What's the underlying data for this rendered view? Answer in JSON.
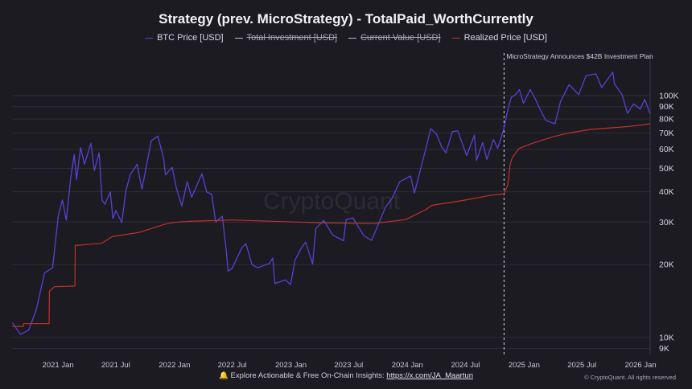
{
  "title": "Strategy (prev. MicroStrategy) - TotalPaid_WorthCurrently",
  "legend": [
    {
      "label": "BTC Price [USD]",
      "color": "#5b3fd6",
      "disabled": false
    },
    {
      "label": "Total Investment [USD]",
      "color": "#bdbdbd",
      "disabled": true
    },
    {
      "label": "Current Value [USD]",
      "color": "#bdbdbd",
      "disabled": true
    },
    {
      "label": "Realized Price [USD]",
      "color": "#c2312b",
      "disabled": false
    }
  ],
  "watermark": "CryptoQuant",
  "footer": {
    "icon": "bell-icon",
    "text": "Explore Actionable & Free On-Chain Insights: ",
    "link": "https://x.com/JA_Maartun"
  },
  "copyright": "© CryptoQuant. All rights reserved",
  "chart_data": {
    "type": "line",
    "title": "Strategy (prev. MicroStrategy) - TotalPaid_WorthCurrently",
    "x_range": [
      "2020-08-10",
      "2026-01-31"
    ],
    "y_scale": "log",
    "ylim": [
      8500,
      150000
    ],
    "x_ticks": [
      {
        "date": "2021-01-01",
        "label": "2021 Jan"
      },
      {
        "date": "2021-07-01",
        "label": "2021 Jul"
      },
      {
        "date": "2022-01-01",
        "label": "2022 Jan"
      },
      {
        "date": "2022-07-01",
        "label": "2022 Jul"
      },
      {
        "date": "2023-01-01",
        "label": "2023 Jan"
      },
      {
        "date": "2023-07-01",
        "label": "2023 Jul"
      },
      {
        "date": "2024-01-01",
        "label": "2024 Jan"
      },
      {
        "date": "2024-07-01",
        "label": "2024 Jul"
      },
      {
        "date": "2025-01-01",
        "label": "2025 Jan"
      },
      {
        "date": "2025-07-01",
        "label": "2025 Jul"
      },
      {
        "date": "2026-01-01",
        "label": "2026 Jan"
      }
    ],
    "y_ticks": [
      {
        "value": 9000,
        "label": "9K"
      },
      {
        "value": 10000,
        "label": "10K"
      },
      {
        "value": 20000,
        "label": "20K"
      },
      {
        "value": 30000,
        "label": "30K"
      },
      {
        "value": 40000,
        "label": "40K"
      },
      {
        "value": 50000,
        "label": "50K"
      },
      {
        "value": 60000,
        "label": "60K"
      },
      {
        "value": 70000,
        "label": "70K"
      },
      {
        "value": 80000,
        "label": "80K"
      },
      {
        "value": 90000,
        "label": "90K"
      },
      {
        "value": 100000,
        "label": "100K"
      }
    ],
    "grid": true,
    "legend_position": "top-center",
    "annotations": [
      {
        "type": "vertical-line",
        "date": "2024-10-30",
        "label": "MicroStrategy Announces $42B Investment Plan"
      }
    ],
    "series": [
      {
        "name": "BTC Price [USD]",
        "color": "#5b3fd6",
        "points": [
          [
            "2020-08-11",
            11500
          ],
          [
            "2020-09-05",
            10300
          ],
          [
            "2020-10-01",
            10700
          ],
          [
            "2020-10-25",
            13000
          ],
          [
            "2020-11-20",
            18500
          ],
          [
            "2020-12-15",
            19400
          ],
          [
            "2021-01-02",
            32000
          ],
          [
            "2021-01-15",
            37000
          ],
          [
            "2021-01-27",
            30500
          ],
          [
            "2021-02-10",
            46000
          ],
          [
            "2021-02-21",
            57000
          ],
          [
            "2021-02-28",
            45000
          ],
          [
            "2021-03-13",
            61000
          ],
          [
            "2021-03-25",
            52000
          ],
          [
            "2021-04-14",
            63500
          ],
          [
            "2021-04-25",
            49000
          ],
          [
            "2021-05-10",
            58000
          ],
          [
            "2021-05-19",
            37000
          ],
          [
            "2021-05-28",
            35500
          ],
          [
            "2021-06-14",
            40000
          ],
          [
            "2021-06-22",
            31000
          ],
          [
            "2021-07-01",
            33500
          ],
          [
            "2021-07-20",
            29800
          ],
          [
            "2021-08-01",
            40000
          ],
          [
            "2021-08-15",
            47000
          ],
          [
            "2021-09-06",
            52000
          ],
          [
            "2021-09-21",
            41000
          ],
          [
            "2021-10-05",
            51000
          ],
          [
            "2021-10-20",
            65000
          ],
          [
            "2021-11-10",
            68000
          ],
          [
            "2021-11-28",
            55000
          ],
          [
            "2021-12-04",
            47000
          ],
          [
            "2021-12-25",
            50500
          ],
          [
            "2022-01-07",
            41500
          ],
          [
            "2022-01-24",
            35000
          ],
          [
            "2022-02-10",
            44000
          ],
          [
            "2022-02-24",
            38000
          ],
          [
            "2022-03-28",
            47500
          ],
          [
            "2022-04-12",
            40000
          ],
          [
            "2022-04-28",
            39000
          ],
          [
            "2022-05-10",
            30000
          ],
          [
            "2022-05-31",
            31700
          ],
          [
            "2022-06-13",
            22500
          ],
          [
            "2022-06-18",
            18800
          ],
          [
            "2022-07-01",
            19300
          ],
          [
            "2022-07-31",
            23500
          ],
          [
            "2022-08-13",
            24400
          ],
          [
            "2022-09-01",
            20000
          ],
          [
            "2022-09-19",
            19400
          ],
          [
            "2022-10-25",
            20200
          ],
          [
            "2022-11-05",
            21300
          ],
          [
            "2022-11-12",
            16700
          ],
          [
            "2022-12-15",
            17300
          ],
          [
            "2022-12-31",
            16500
          ],
          [
            "2023-01-14",
            20900
          ],
          [
            "2023-01-31",
            23100
          ],
          [
            "2023-02-16",
            24800
          ],
          [
            "2023-03-10",
            20100
          ],
          [
            "2023-03-20",
            28200
          ],
          [
            "2023-04-14",
            30500
          ],
          [
            "2023-05-12",
            26500
          ],
          [
            "2023-06-15",
            25100
          ],
          [
            "2023-06-23",
            30700
          ],
          [
            "2023-07-14",
            31200
          ],
          [
            "2023-08-18",
            26300
          ],
          [
            "2023-09-11",
            25200
          ],
          [
            "2023-10-24",
            34500
          ],
          [
            "2023-11-15",
            37800
          ],
          [
            "2023-12-08",
            44000
          ],
          [
            "2024-01-11",
            46500
          ],
          [
            "2024-01-23",
            39500
          ],
          [
            "2024-02-15",
            51800
          ],
          [
            "2024-03-01",
            62000
          ],
          [
            "2024-03-14",
            73000
          ],
          [
            "2024-04-01",
            69500
          ],
          [
            "2024-04-17",
            61500
          ],
          [
            "2024-05-01",
            58000
          ],
          [
            "2024-05-21",
            71000
          ],
          [
            "2024-06-07",
            71500
          ],
          [
            "2024-07-05",
            56500
          ],
          [
            "2024-07-29",
            68500
          ],
          [
            "2024-08-05",
            54000
          ],
          [
            "2024-08-24",
            64000
          ],
          [
            "2024-09-06",
            54500
          ],
          [
            "2024-09-27",
            65800
          ],
          [
            "2024-10-10",
            60500
          ],
          [
            "2024-10-29",
            72500
          ],
          [
            "2024-11-12",
            89000
          ],
          [
            "2024-11-22",
            98500
          ],
          [
            "2024-12-05",
            101000
          ],
          [
            "2024-12-17",
            106000
          ],
          [
            "2024-12-30",
            93000
          ],
          [
            "2025-01-20",
            106000
          ],
          [
            "2025-02-03",
            98000
          ],
          [
            "2025-02-26",
            84500
          ],
          [
            "2025-03-10",
            79000
          ],
          [
            "2025-04-08",
            76500
          ],
          [
            "2025-04-25",
            94500
          ],
          [
            "2025-05-22",
            111000
          ],
          [
            "2025-06-21",
            101000
          ],
          [
            "2025-07-14",
            121000
          ],
          [
            "2025-08-14",
            123000
          ],
          [
            "2025-09-01",
            108000
          ],
          [
            "2025-10-06",
            125000
          ],
          [
            "2025-10-11",
            112000
          ],
          [
            "2025-11-04",
            101000
          ],
          [
            "2025-11-21",
            84500
          ],
          [
            "2025-12-10",
            92500
          ],
          [
            "2025-12-31",
            88000
          ],
          [
            "2026-01-14",
            96500
          ],
          [
            "2026-01-31",
            84000
          ]
        ]
      },
      {
        "name": "Realized Price [USD]",
        "color": "#c2312b",
        "points": [
          [
            "2020-08-11",
            11100
          ],
          [
            "2020-09-14",
            11100
          ],
          [
            "2020-09-15",
            11400
          ],
          [
            "2020-12-04",
            11400
          ],
          [
            "2020-12-05",
            15500
          ],
          [
            "2020-12-21",
            16200
          ],
          [
            "2021-02-23",
            16300
          ],
          [
            "2021-02-24",
            24000
          ],
          [
            "2021-03-31",
            24200
          ],
          [
            "2021-05-18",
            24500
          ],
          [
            "2021-06-20",
            26100
          ],
          [
            "2021-09-13",
            27200
          ],
          [
            "2021-11-29",
            29300
          ],
          [
            "2021-12-30",
            29900
          ],
          [
            "2022-02-15",
            30200
          ],
          [
            "2022-06-29",
            30600
          ],
          [
            "2023-03-27",
            29800
          ],
          [
            "2023-06-28",
            29700
          ],
          [
            "2023-09-20",
            29600
          ],
          [
            "2023-12-27",
            30700
          ],
          [
            "2024-02-26",
            33700
          ],
          [
            "2024-03-19",
            35200
          ],
          [
            "2024-06-20",
            36800
          ],
          [
            "2024-09-13",
            38600
          ],
          [
            "2024-10-31",
            39300
          ],
          [
            "2024-11-11",
            43000
          ],
          [
            "2024-11-18",
            51800
          ],
          [
            "2024-11-25",
            55500
          ],
          [
            "2024-12-16",
            60400
          ],
          [
            "2025-01-27",
            63500
          ],
          [
            "2025-03-31",
            67500
          ],
          [
            "2025-05-19",
            70000
          ],
          [
            "2025-07-28",
            72500
          ],
          [
            "2025-11-17",
            74400
          ],
          [
            "2026-01-12",
            75800
          ],
          [
            "2026-01-31",
            76500
          ]
        ]
      }
    ]
  }
}
